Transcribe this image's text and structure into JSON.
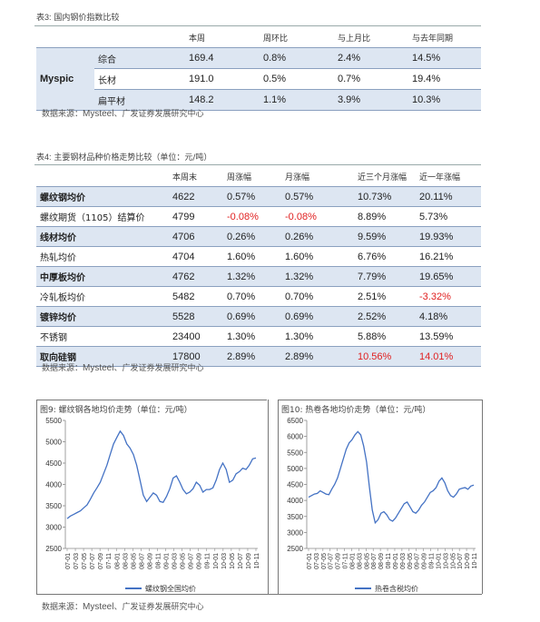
{
  "table3": {
    "caption_prefix": "表3:",
    "caption": "国内钢价指数比较",
    "headers": [
      "",
      "",
      "本周",
      "周环比",
      "与上月比",
      "与去年同期"
    ],
    "group_label": "Myspic",
    "rows": [
      {
        "name": "综合",
        "values": [
          "169.4",
          "0.8%",
          "2.4%",
          "14.5%"
        ],
        "shaded": true
      },
      {
        "name": "长材",
        "values": [
          "191.0",
          "0.5%",
          "0.7%",
          "19.4%"
        ],
        "shaded": false
      },
      {
        "name": "扁平材",
        "values": [
          "148.2",
          "1.1%",
          "3.9%",
          "10.3%"
        ],
        "shaded": true
      }
    ],
    "source": "数据来源：",
    "source_en": "Mysteel",
    "source_suffix": "、广发证券发展研究中心"
  },
  "table4": {
    "caption_prefix": "表4:",
    "caption": "主要钢材品种价格走势比较（单位：元/吨）",
    "headers": [
      "",
      "本周末",
      "周涨幅",
      "月涨幅",
      "近三个月涨幅",
      "近一年涨幅"
    ],
    "rows": [
      {
        "name": "螺纹钢均价",
        "bold": true,
        "shaded": true,
        "values": [
          "4622",
          "0.57%",
          "0.57%",
          "10.73%",
          "20.11%"
        ],
        "red": []
      },
      {
        "name": "螺纹期货（1105）结算价",
        "bold": false,
        "shaded": false,
        "values": [
          "4799",
          "-0.08%",
          "-0.08%",
          "8.89%",
          "5.73%"
        ],
        "red": [
          1,
          2
        ]
      },
      {
        "name": "线材均价",
        "bold": true,
        "shaded": true,
        "values": [
          "4706",
          "0.26%",
          "0.26%",
          "9.59%",
          "19.93%"
        ],
        "red": []
      },
      {
        "name": "热轧均价",
        "bold": false,
        "shaded": false,
        "values": [
          "4704",
          "1.60%",
          "1.60%",
          "6.76%",
          "16.21%"
        ],
        "red": []
      },
      {
        "name": "中厚板均价",
        "bold": true,
        "shaded": true,
        "values": [
          "4762",
          "1.32%",
          "1.32%",
          "7.79%",
          "19.65%"
        ],
        "red": []
      },
      {
        "name": "冷轧板均价",
        "bold": false,
        "shaded": false,
        "values": [
          "5482",
          "0.70%",
          "0.70%",
          "2.51%",
          "-3.32%"
        ],
        "red": [
          4
        ]
      },
      {
        "name": "镀锌均价",
        "bold": true,
        "shaded": true,
        "values": [
          "5528",
          "0.69%",
          "0.69%",
          "2.52%",
          "4.18%"
        ],
        "red": []
      },
      {
        "name": "不锈钢",
        "bold": false,
        "shaded": false,
        "values": [
          "23400",
          "1.30%",
          "1.30%",
          "5.88%",
          "13.59%"
        ],
        "red": []
      },
      {
        "name": "取向硅钢",
        "bold": true,
        "shaded": true,
        "values": [
          "17800",
          "2.89%",
          "2.89%",
          "10.56%",
          "14.01%"
        ],
        "red": [
          3,
          4
        ]
      }
    ],
    "source": "数据来源：",
    "source_en": "Mysteel",
    "source_suffix": "、广发证券发展研究中心"
  },
  "figure9": {
    "caption": "图9:  螺纹钢各地均价走势（单位：元/吨）"
  },
  "figure10": {
    "caption": "图10:  热卷各地均价走势（单位：元/吨）"
  },
  "bottom_source": {
    "source": "数据来源：",
    "source_en": "Mysteel",
    "source_suffix": "、广发证券发展研究中心"
  },
  "colors": {
    "line": "#4472c4",
    "shade": "#dde6f2",
    "red": "#e02020"
  },
  "chart_data": [
    {
      "type": "line",
      "title": "",
      "xlabel": "",
      "ylabel": "",
      "ylim": [
        2500,
        5500
      ],
      "yticks": [
        2500,
        3000,
        3500,
        4000,
        4500,
        5000,
        5500
      ],
      "x_ticks": [
        "07-01",
        "07-03",
        "07-05",
        "07-07",
        "07-09",
        "07-11",
        "08-01",
        "08-03",
        "08-05",
        "08-07",
        "08-09",
        "08-11",
        "09-01",
        "09-03",
        "09-05",
        "09-07",
        "09-09",
        "09-11",
        "10-01",
        "10-03",
        "10-05",
        "10-07",
        "10-09",
        "10-11"
      ],
      "series": [
        {
          "name": "螺纹钢全国均价",
          "values": [
            3200,
            3260,
            3300,
            3340,
            3380,
            3450,
            3520,
            3650,
            3800,
            3920,
            4050,
            4250,
            4450,
            4700,
            4950,
            5100,
            5250,
            5150,
            4950,
            4850,
            4700,
            4450,
            4100,
            3750,
            3600,
            3700,
            3800,
            3750,
            3600,
            3580,
            3720,
            3900,
            4150,
            4200,
            4050,
            3880,
            3780,
            3820,
            3900,
            4050,
            3980,
            3820,
            3880,
            3880,
            3920,
            4100,
            4350,
            4500,
            4350,
            4050,
            4100,
            4250,
            4300,
            4380,
            4350,
            4450,
            4600,
            4620
          ]
        }
      ]
    },
    {
      "type": "line",
      "title": "",
      "xlabel": "",
      "ylabel": "",
      "ylim": [
        2500,
        6500
      ],
      "yticks": [
        2500,
        3000,
        3500,
        4000,
        4500,
        5000,
        5500,
        6000,
        6500
      ],
      "x_ticks": [
        "07-01",
        "07-03",
        "07-05",
        "07-07",
        "07-09",
        "07-11",
        "08-01",
        "08-03",
        "08-05",
        "08-07",
        "08-09",
        "08-11",
        "09-01",
        "09-03",
        "09-05",
        "09-07",
        "09-09",
        "09-11",
        "10-01",
        "10-03",
        "10-05",
        "10-07",
        "10-09",
        "10-11"
      ],
      "series": [
        {
          "name": "热卷含税均价",
          "values": [
            4100,
            4150,
            4200,
            4220,
            4300,
            4250,
            4200,
            4180,
            4350,
            4500,
            4700,
            5000,
            5300,
            5600,
            5800,
            5900,
            6050,
            6150,
            6050,
            5700,
            5200,
            4400,
            3700,
            3300,
            3400,
            3600,
            3650,
            3550,
            3400,
            3350,
            3450,
            3600,
            3750,
            3900,
            3950,
            3800,
            3650,
            3600,
            3700,
            3850,
            3950,
            4100,
            4250,
            4300,
            4400,
            4600,
            4700,
            4550,
            4300,
            4150,
            4100,
            4200,
            4350,
            4380,
            4400,
            4350,
            4450,
            4480
          ]
        }
      ]
    }
  ]
}
